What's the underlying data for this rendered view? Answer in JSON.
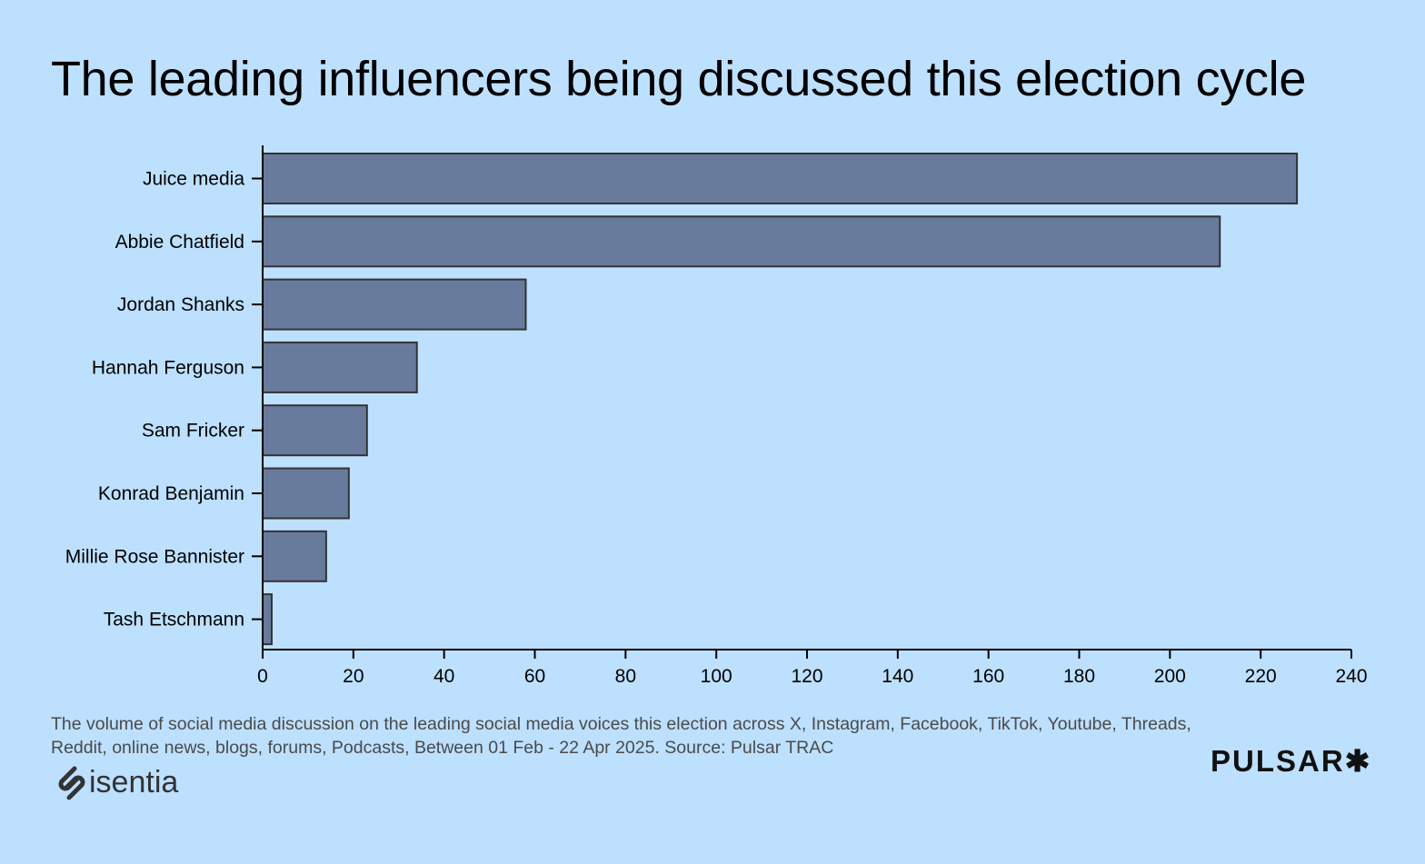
{
  "title": "The leading influencers being discussed this election cycle",
  "caption": "The volume of social media discussion on the leading social media voices this election across X, Instagram, Facebook, TikTok, Youtube, Threads, Reddit, online news, blogs, forums, Podcasts, Between 01 Feb - 22 Apr 2025. Source: Pulsar TRAC",
  "logos": {
    "left": "isentia",
    "right": "PULSAR",
    "right_mark": "✱"
  },
  "colors": {
    "background": "#bde0fe",
    "bar": "#687b9c",
    "bar_stroke": "#333333"
  },
  "chart_data": {
    "type": "bar",
    "orientation": "horizontal",
    "categories": [
      "Juice media",
      "Abbie Chatfield",
      "Jordan Shanks",
      "Hannah Ferguson",
      "Sam Fricker",
      "Konrad Benjamin",
      "Millie Rose Bannister",
      "Tash Etschmann"
    ],
    "values": [
      228,
      211,
      58,
      34,
      23,
      19,
      14,
      2
    ],
    "xlim": [
      0,
      240
    ],
    "xticks": [
      0,
      20,
      40,
      60,
      80,
      100,
      120,
      140,
      160,
      180,
      200,
      220,
      240
    ],
    "xlabel": "",
    "ylabel": "",
    "grid": false
  }
}
